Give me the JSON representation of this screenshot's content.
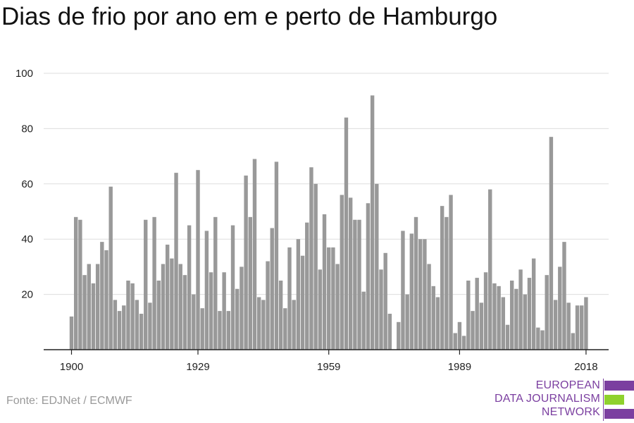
{
  "title": "Dias de frio por ano em e perto de Hamburgo",
  "source": "Fonte: EDJNet / ECMWF",
  "logo": {
    "lines": [
      "EUROPEAN",
      "DATA JOURNALISM",
      "NETWORK"
    ],
    "colors": {
      "purple": "#7b3fa0",
      "green": "#8fd12e"
    }
  },
  "colors": {
    "bar": "#999999",
    "grid": "#dddddd",
    "axis": "#222222"
  },
  "chart_data": {
    "type": "bar",
    "x_tick_labels": [
      "1900",
      "1929",
      "1959",
      "1989",
      "2018"
    ],
    "y_ticks": [
      20,
      40,
      60,
      80,
      100
    ],
    "ylim": [
      0,
      100
    ],
    "grid": true,
    "categories": [
      1900,
      1901,
      1902,
      1903,
      1904,
      1905,
      1906,
      1907,
      1908,
      1909,
      1910,
      1911,
      1912,
      1913,
      1914,
      1915,
      1916,
      1917,
      1918,
      1919,
      1920,
      1921,
      1922,
      1923,
      1924,
      1925,
      1926,
      1927,
      1928,
      1929,
      1930,
      1931,
      1932,
      1933,
      1934,
      1935,
      1936,
      1937,
      1938,
      1939,
      1940,
      1941,
      1942,
      1943,
      1944,
      1945,
      1946,
      1947,
      1948,
      1949,
      1950,
      1951,
      1952,
      1953,
      1954,
      1955,
      1956,
      1957,
      1958,
      1959,
      1960,
      1961,
      1962,
      1963,
      1964,
      1965,
      1966,
      1967,
      1968,
      1969,
      1970,
      1971,
      1972,
      1973,
      1974,
      1975,
      1976,
      1977,
      1978,
      1979,
      1980,
      1981,
      1982,
      1983,
      1984,
      1985,
      1986,
      1987,
      1988,
      1989,
      1990,
      1991,
      1992,
      1993,
      1994,
      1995,
      1996,
      1997,
      1998,
      1999,
      2000,
      2001,
      2002,
      2003,
      2004,
      2005,
      2006,
      2007,
      2008,
      2009,
      2010,
      2011,
      2012,
      2013,
      2014,
      2015,
      2016,
      2017,
      2018
    ],
    "values": [
      12,
      48,
      47,
      27,
      31,
      24,
      31,
      39,
      36,
      59,
      18,
      14,
      16,
      25,
      24,
      18,
      13,
      47,
      17,
      48,
      25,
      31,
      38,
      33,
      64,
      31,
      27,
      45,
      20,
      65,
      15,
      43,
      28,
      48,
      14,
      28,
      14,
      45,
      22,
      30,
      63,
      48,
      69,
      19,
      18,
      32,
      44,
      68,
      25,
      15,
      37,
      18,
      40,
      34,
      46,
      66,
      60,
      29,
      49,
      37,
      37,
      31,
      56,
      84,
      55,
      47,
      47,
      21,
      53,
      92,
      60,
      29,
      35,
      13,
      0,
      10,
      43,
      20,
      42,
      48,
      40,
      40,
      31,
      23,
      19,
      52,
      48,
      56,
      6,
      10,
      5,
      25,
      14,
      26,
      17,
      28,
      58,
      24,
      23,
      19,
      9,
      25,
      22,
      29,
      20,
      26,
      33,
      8,
      7,
      27,
      77,
      18,
      30,
      39,
      17,
      6,
      16,
      16,
      19
    ]
  }
}
